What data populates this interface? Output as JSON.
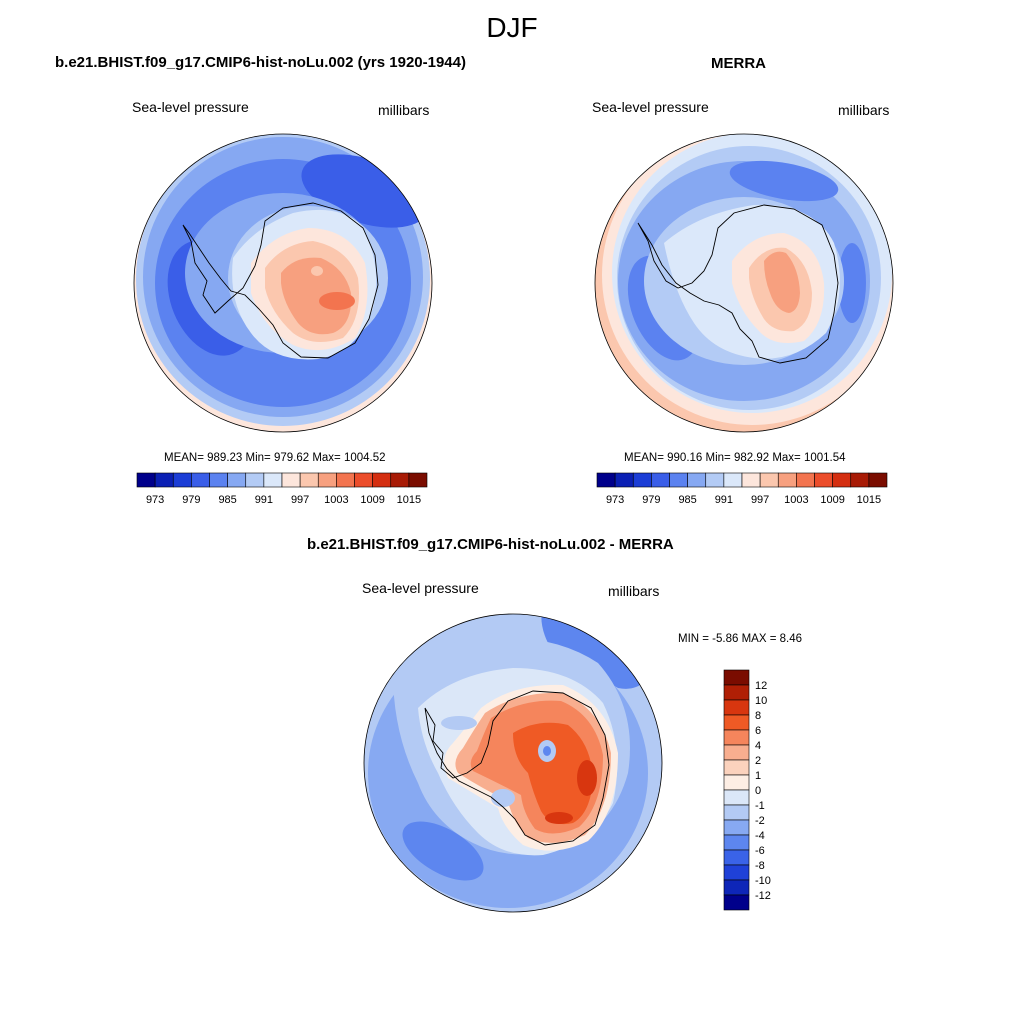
{
  "main_title": "DJF",
  "panels": [
    {
      "title": "b.e21.BHIST.f09_g17.CMIP6-hist-noLu.002 (yrs 1920-1944)",
      "left_label": "Sea-level pressure",
      "right_label": "millibars",
      "stats": "MEAN= 989.23  Min= 979.62  Max= 1004.52"
    },
    {
      "title": "MERRA",
      "left_label": "Sea-level pressure",
      "right_label": "millibars",
      "stats": "MEAN= 990.16  Min= 982.92  Max= 1001.54"
    },
    {
      "title": "b.e21.BHIST.f09_g17.CMIP6-hist-noLu.002 - MERRA",
      "left_label": "Sea-level pressure",
      "right_label": "millibars",
      "stats": "MIN =  -5.86 MAX =   8.46"
    }
  ],
  "abs_colorbar": {
    "colors": [
      "#00008b",
      "#0a1fb4",
      "#1b3dd6",
      "#3a5ee8",
      "#5b82f0",
      "#86a8f2",
      "#b3cbf5",
      "#dbe8fa",
      "#fde6dc",
      "#fbc7ae",
      "#f7a07f",
      "#f3744f",
      "#ec4d2b",
      "#d42e10",
      "#a81b06",
      "#7a0c00"
    ],
    "tick_labels": [
      "973",
      "979",
      "985",
      "991",
      "997",
      "1003",
      "1009",
      "1015"
    ]
  },
  "diff_colorbar": {
    "colors_top_to_bottom": [
      "#7a0c00",
      "#b01f05",
      "#d8360f",
      "#ef5a25",
      "#f5855c",
      "#f8ae8f",
      "#fbd2bd",
      "#fdeee4",
      "#dbe7f8",
      "#b3caf4",
      "#87a9f2",
      "#5d86ef",
      "#3a63e8",
      "#1f41d8",
      "#0e26b8",
      "#00008b"
    ],
    "tick_labels": [
      "12",
      "10",
      "8",
      "6",
      "4",
      "2",
      "1",
      "0",
      "-1",
      "-2",
      "-4",
      "-6",
      "-8",
      "-10",
      "-12"
    ]
  }
}
